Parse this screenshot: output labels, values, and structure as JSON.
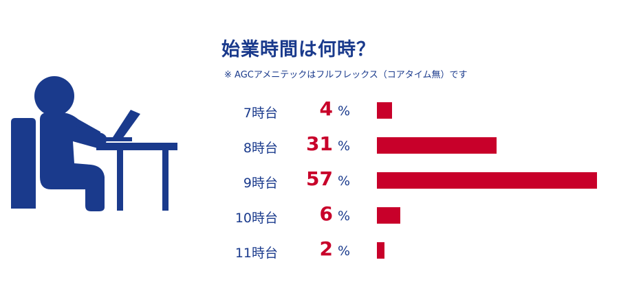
{
  "title": "始業時間は何時？",
  "note": "※ AGCアメニテックはフルフレックス（コアタイム無）です",
  "icon": "person-at-computer-icon",
  "colors": {
    "accent": "#c8002a",
    "text": "#1a3a8c",
    "icon": "#1a3a8c"
  },
  "chart_data": {
    "type": "bar",
    "orientation": "horizontal",
    "categories": [
      "7時台",
      "8時台",
      "9時台",
      "10時台",
      "11時台"
    ],
    "values": [
      4,
      31,
      57,
      6,
      2
    ],
    "unit": "%",
    "xlim": [
      0,
      57
    ]
  }
}
